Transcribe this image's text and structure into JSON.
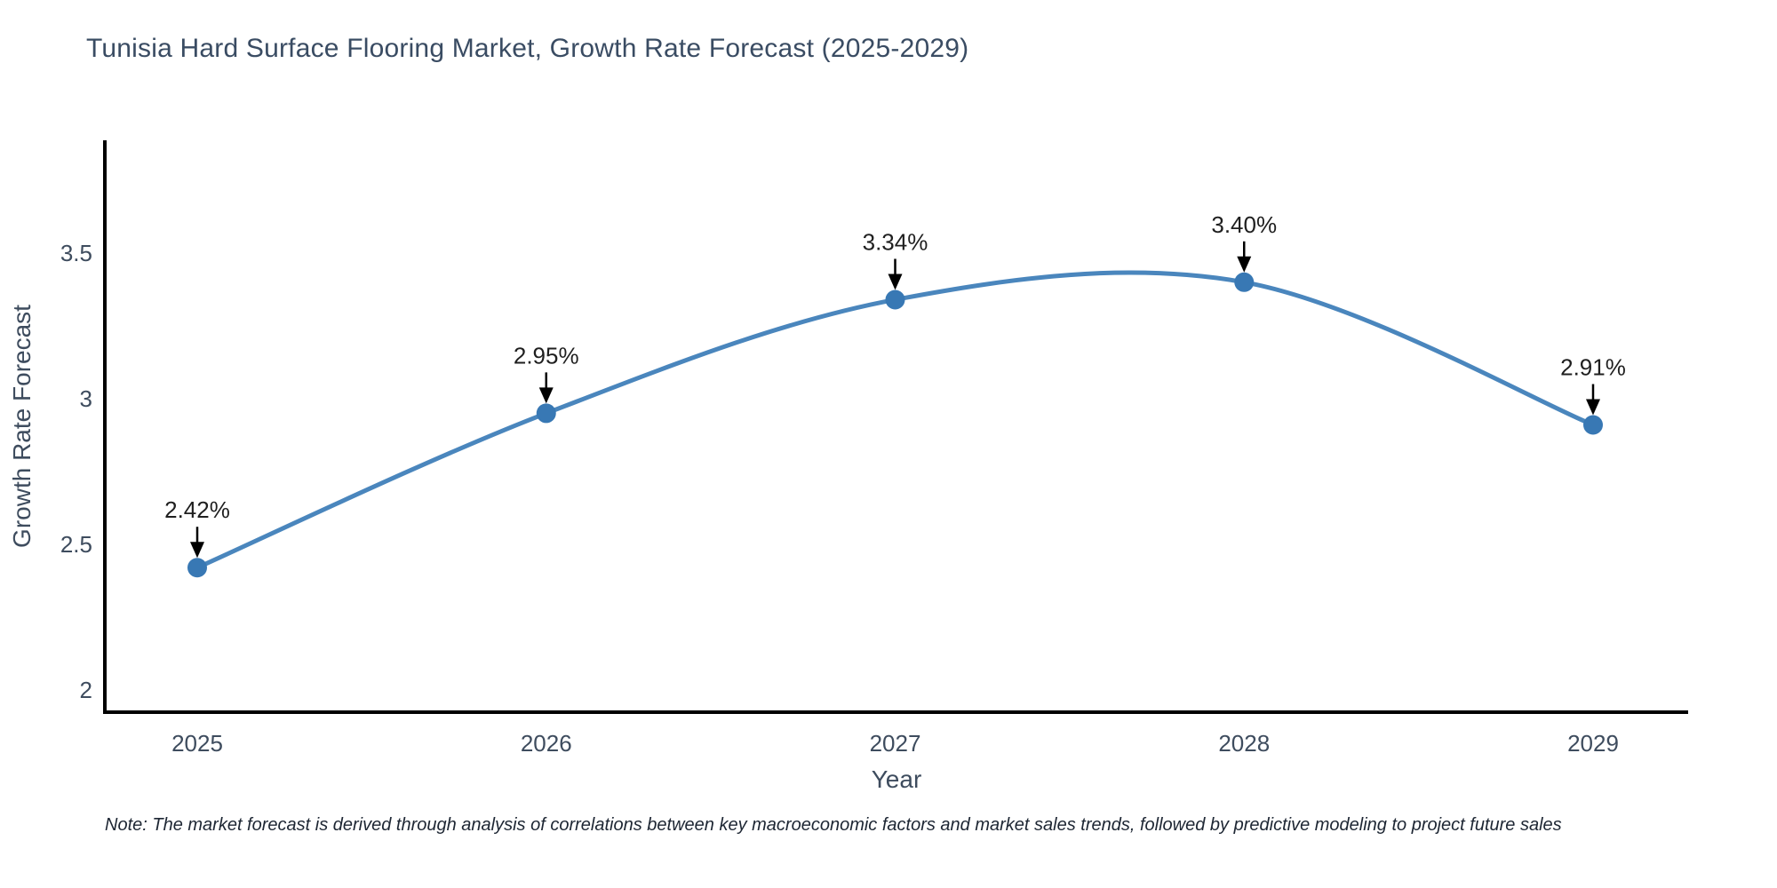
{
  "title": "Tunisia Hard Surface Flooring Market, Growth Rate Forecast (2025-2029)",
  "note": "Note: The market forecast is derived through analysis of correlations between key macroeconomic factors and market sales trends, followed by predictive modeling to project future sales",
  "chart_data": {
    "type": "line",
    "line_shape": "spline",
    "title": "Tunisia Hard Surface Flooring Market, Growth Rate Forecast (2025-2029)",
    "xlabel": "Year",
    "ylabel": "Growth Rate Forecast",
    "x": [
      2025,
      2026,
      2027,
      2028,
      2029
    ],
    "y": [
      2.42,
      2.95,
      3.34,
      3.4,
      2.91
    ],
    "point_labels": [
      "2.42%",
      "2.95%",
      "3.34%",
      "3.40%",
      "2.91%"
    ],
    "xtick_labels": [
      "2025",
      "2026",
      "2027",
      "2028",
      "2029"
    ],
    "yticks": [
      3.5,
      3,
      2.5,
      2
    ],
    "ytick_labels": [
      "3.5",
      "3",
      "2.5",
      "2"
    ],
    "xlim": [
      2024.74,
      2029.27
    ],
    "ylim": [
      1.92,
      3.88
    ],
    "grid": false,
    "legend": "none",
    "markers": true,
    "annotations_arrows": true,
    "colors": {
      "line": "#4a86bd",
      "marker": "#3878b4",
      "axis": "#000000",
      "tick_text": "#3e4c5e",
      "annotation_text": "#1f1f1f",
      "annotation_arrow": "#000000",
      "title_text": "#3a4c63",
      "note_text": "#1d2633",
      "background": "#ffffff"
    }
  }
}
